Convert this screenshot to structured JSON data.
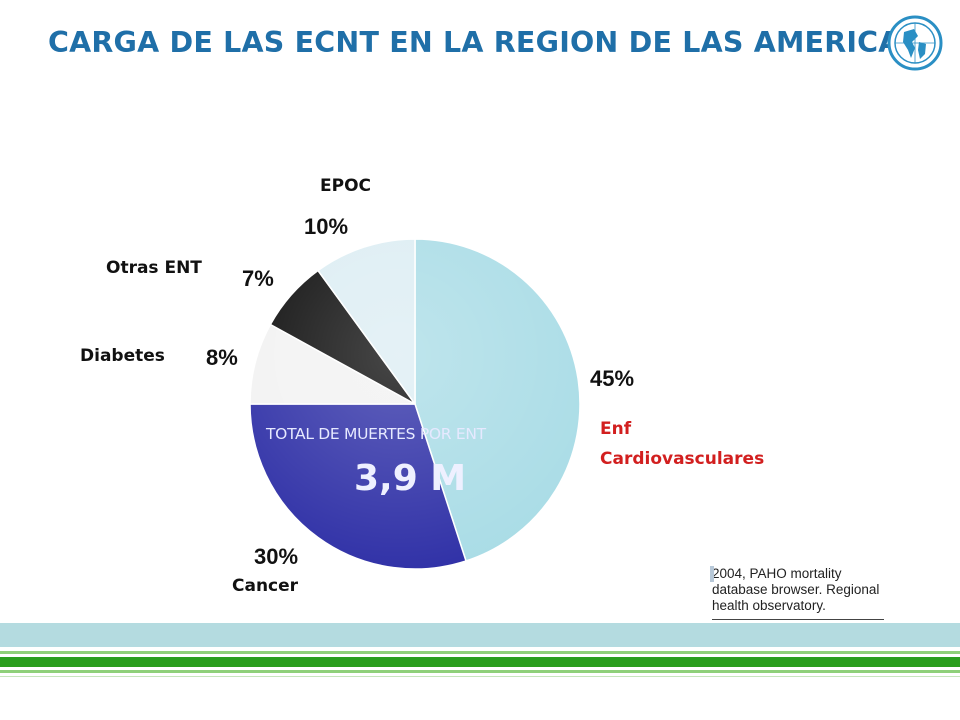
{
  "title": "CARGA DE LAS ECNT EN LA REGION DE LAS AMERICAS",
  "total": {
    "label": "TOTAL DE MUERTES POR ENT",
    "value": "3,9 M"
  },
  "source": [
    "2004, PAHO mortality",
    "database browser. Regional",
    "health observatory."
  ],
  "chart_data": {
    "type": "pie",
    "slices": [
      {
        "name": "Enf Cardiovasculares",
        "value": 45,
        "label": "45%",
        "color": "#a9dce6"
      },
      {
        "name": "Cancer",
        "value": 30,
        "label": "30%",
        "color": "#2e2fa6"
      },
      {
        "name": "Diabetes",
        "value": 8,
        "label": "8%",
        "color": "#f2f2f2"
      },
      {
        "name": "Otras ENT",
        "value": 7,
        "label": "7%",
        "color": "#0a0a0a"
      },
      {
        "name": "EPOC",
        "value": 10,
        "label": "10%",
        "color": "#dcedf3"
      }
    ]
  }
}
